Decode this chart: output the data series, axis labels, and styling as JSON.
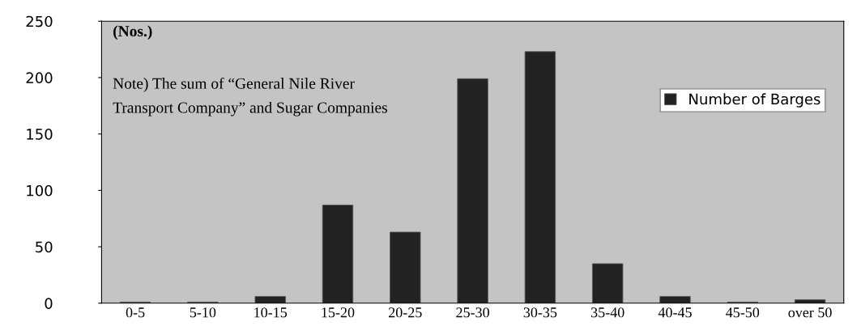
{
  "chart_data": {
    "type": "bar",
    "categories": [
      "0-5",
      "5-10",
      "10-15",
      "15-20",
      "20-25",
      "25-30",
      "30-35",
      "35-40",
      "40-45",
      "45-50",
      "over 50"
    ],
    "series": [
      {
        "name": "Number of Barges",
        "color": "#222222",
        "values": [
          1,
          1,
          6,
          87,
          63,
          199,
          223,
          35,
          6,
          1,
          3
        ]
      }
    ],
    "ylim": [
      0,
      250
    ],
    "yticks": [
      0,
      50,
      100,
      150,
      200,
      250
    ],
    "annotations": [
      "(Nos.)",
      "Note) The sum of “General Nile River\nTransport Company” and Sugar Companies"
    ],
    "legend": "top right",
    "grid": false
  }
}
